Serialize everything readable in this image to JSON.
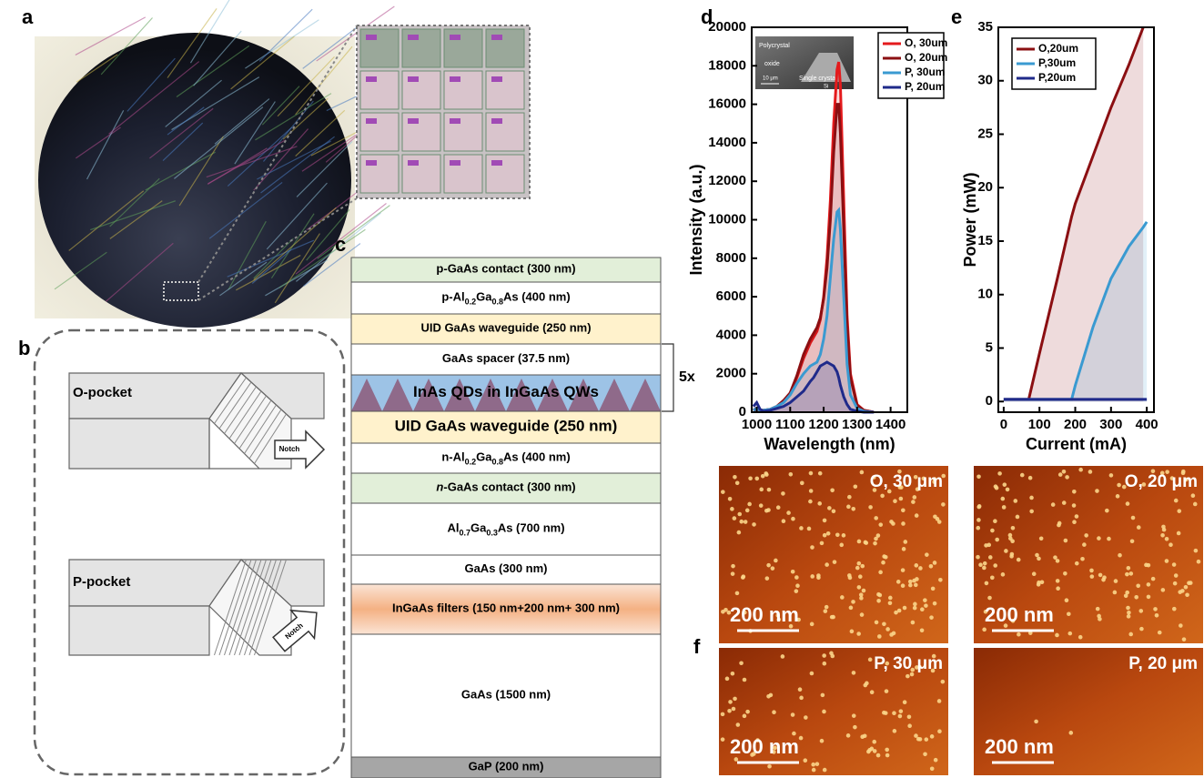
{
  "panel_labels": [
    "a",
    "b",
    "c",
    "d",
    "e",
    "f"
  ],
  "panel_b": {
    "top": "O-pocket",
    "top_arrow": "Notch",
    "bottom": "P-pocket",
    "bottom_arrow": "Notch"
  },
  "panel_c": {
    "repeat": "5x",
    "layers": [
      {
        "label": [
          {
            "text": "p-GaAs contact (300 nm)"
          }
        ]
      },
      {
        "label": [
          {
            "text": "p-Al"
          },
          {
            "sub": "0.2"
          },
          {
            "text": "Ga"
          },
          {
            "sub": "0.8"
          },
          {
            "text": "As (400 nm)"
          }
        ]
      },
      {
        "label": [
          {
            "text": "UID GaAs waveguide (250 nm)"
          }
        ]
      },
      {
        "label": [
          {
            "text": "GaAs spacer (37.5 nm)"
          }
        ]
      },
      {
        "label": [
          {
            "text": "InAs QDs in InGaAs QWs"
          }
        ]
      },
      {
        "label": [
          {
            "text": "UID GaAs waveguide (250 nm)"
          }
        ]
      },
      {
        "label": [
          {
            "text": "n-Al"
          },
          {
            "sub": "0.2"
          },
          {
            "text": "Ga"
          },
          {
            "sub": "0.8"
          },
          {
            "text": "As (400 nm)"
          }
        ]
      },
      {
        "label": [
          {
            "italic": "n"
          },
          {
            "text": "-GaAs contact (300 nm)"
          }
        ]
      },
      {
        "label": [
          {
            "text": "Al"
          },
          {
            "sub": "0.7"
          },
          {
            "text": "Ga"
          },
          {
            "sub": "0.3"
          },
          {
            "text": "As (700 nm)"
          }
        ]
      },
      {
        "label": [
          {
            "text": "GaAs (300 nm)"
          }
        ]
      },
      {
        "label": [
          {
            "text": "InGaAs filters (150 nm+200 nm+ 300 nm)"
          }
        ]
      },
      {
        "label": [
          {
            "text": "GaAs (1500 nm)"
          }
        ]
      },
      {
        "label": [
          {
            "text": "GaP (200 nm)"
          }
        ]
      }
    ]
  },
  "inset_d": [
    "Polycrystal",
    "oxide",
    "10 μm",
    "Single crystal",
    "Si"
  ],
  "chart_data": [
    {
      "type": "line",
      "xlabel": "Wavelength (nm)",
      "ylabel": "Intensity (a.u.)",
      "x": [
        990,
        1000,
        1010,
        1020,
        1040,
        1060,
        1080,
        1100,
        1120,
        1140,
        1160,
        1170,
        1180,
        1190,
        1200,
        1210,
        1220,
        1230,
        1240,
        1245,
        1250,
        1260,
        1270,
        1280,
        1300,
        1320,
        1350
      ],
      "series": [
        {
          "name": "O, 30um",
          "color": "#e41a1c",
          "values": [
            100,
            200,
            100,
            100,
            150,
            300,
            600,
            1000,
            1800,
            2800,
            3600,
            3900,
            4200,
            4800,
            6000,
            8000,
            11000,
            15000,
            17800,
            18200,
            17000,
            11000,
            5000,
            2000,
            400,
            100,
            0
          ]
        },
        {
          "name": "O, 20um",
          "color": "#8b0f12",
          "values": [
            100,
            200,
            100,
            100,
            150,
            300,
            600,
            1000,
            1900,
            3000,
            3800,
            4100,
            4400,
            4900,
            5900,
            7500,
            10000,
            13500,
            16000,
            16000,
            14500,
            9500,
            4500,
            1800,
            350,
            100,
            0
          ]
        },
        {
          "name": "P, 30um",
          "color": "#3a9ad1",
          "values": [
            100,
            200,
            100,
            100,
            150,
            300,
            500,
            900,
            1500,
            2000,
            2400,
            2500,
            2600,
            3000,
            3800,
            5000,
            7000,
            9000,
            10400,
            10500,
            9500,
            6000,
            2500,
            900,
            200,
            50,
            0
          ]
        },
        {
          "name": "P, 20um",
          "color": "#1f2a8a",
          "values": [
            300,
            500,
            150,
            50,
            100,
            200,
            300,
            500,
            800,
            1100,
            1600,
            1800,
            2100,
            2400,
            2500,
            2600,
            2500,
            2400,
            2100,
            1800,
            1400,
            800,
            400,
            150,
            50,
            0,
            0
          ]
        }
      ],
      "xlim": [
        985,
        1450
      ],
      "ylim": [
        0,
        20000
      ],
      "xticks": [
        1000,
        1100,
        1200,
        1300,
        1400
      ],
      "yticks": [
        0,
        2000,
        4000,
        6000,
        8000,
        10000,
        12000,
        14000,
        16000,
        18000,
        20000
      ],
      "legend": "upper right"
    },
    {
      "type": "line",
      "xlabel": "Current (mA)",
      "ylabel": "Power (mW)",
      "x": [
        0,
        50,
        70,
        100,
        150,
        190,
        200,
        250,
        300,
        350,
        390,
        400
      ],
      "series": [
        {
          "name": "O,20um",
          "color": "#8b0f12",
          "values": [
            0.2,
            0.2,
            0.2,
            4.5,
            11.5,
            17.3,
            18.5,
            23,
            27.5,
            31.5,
            35,
            null
          ]
        },
        {
          "name": "P,30um",
          "color": "#3a9ad1",
          "values": [
            0.2,
            0.2,
            0.2,
            0.2,
            0.2,
            0.2,
            1.5,
            7,
            11.5,
            14.5,
            16.3,
            16.8
          ]
        },
        {
          "name": "P,20um",
          "color": "#1f2a8a",
          "values": [
            0.2,
            0.2,
            0.2,
            0.2,
            0.2,
            0.2,
            0.2,
            0.2,
            0.2,
            0.2,
            0.2,
            0.2
          ]
        }
      ],
      "xlim": [
        -15,
        420
      ],
      "ylim": [
        -1,
        35
      ],
      "xticks": [
        0,
        100,
        200,
        300,
        400
      ],
      "yticks": [
        0,
        5,
        10,
        15,
        20,
        25,
        30,
        35
      ],
      "legend": "upper left"
    }
  ],
  "panel_f": [
    {
      "label": "O, 30 μm",
      "scale": "200 nm"
    },
    {
      "label": "O, 20 μm",
      "scale": "200 nm"
    },
    {
      "label": "P, 30 μm",
      "scale": "200 nm"
    },
    {
      "label": "P, 20 μm",
      "scale": "200 nm"
    }
  ]
}
